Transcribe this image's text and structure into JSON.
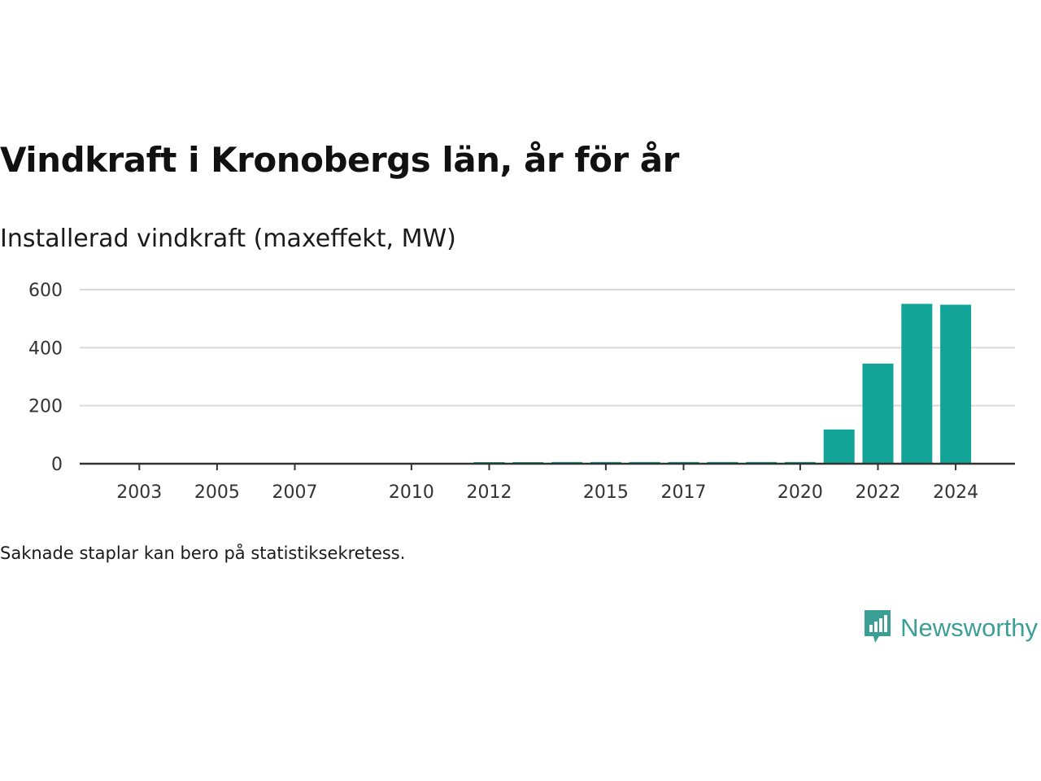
{
  "title": "Vindkraft i Kronobergs län, år för år",
  "subtitle": "Installerad vindkraft (maxeffekt, MW)",
  "footnote": "Saknade staplar kan bero på statistiksekretess.",
  "brand": {
    "name": "Newsworthy",
    "icon": "newsworthy-logo-icon"
  },
  "colors": {
    "bar": "#12a597",
    "grid": "#d9d9d9",
    "axis": "#333333",
    "brand": "#3c9f96"
  },
  "chart_data": {
    "type": "bar",
    "ylim": [
      0,
      600
    ],
    "yticks": [
      0,
      200,
      400,
      600
    ],
    "grid": true,
    "x_tick_labels": [
      "2003",
      "2005",
      "2007",
      "2010",
      "2012",
      "2015",
      "2017",
      "2020",
      "2022",
      "2024"
    ],
    "bars": [
      {
        "year": 2002,
        "value": 0
      },
      {
        "year": 2003,
        "value": 0
      },
      {
        "year": 2004,
        "value": 0
      },
      {
        "year": 2005,
        "value": 0
      },
      {
        "year": 2006,
        "value": 0
      },
      {
        "year": 2007,
        "value": 0
      },
      {
        "year": 2008,
        "value": 0
      },
      {
        "year": 2009,
        "value": 0
      },
      {
        "year": 2010,
        "value": 0
      },
      {
        "year": 2011,
        "value": 0
      },
      {
        "year": 2012,
        "value": 4
      },
      {
        "year": 2013,
        "value": 4
      },
      {
        "year": 2014,
        "value": 6
      },
      {
        "year": 2015,
        "value": 6
      },
      {
        "year": 2016,
        "value": 6
      },
      {
        "year": 2017,
        "value": 6
      },
      {
        "year": 2018,
        "value": 6
      },
      {
        "year": 2019,
        "value": 6
      },
      {
        "year": 2020,
        "value": 6
      },
      {
        "year": 2021,
        "value": 118
      },
      {
        "year": 2022,
        "value": 345
      },
      {
        "year": 2023,
        "value": 551
      },
      {
        "year": 2024,
        "value": 548
      }
    ]
  }
}
